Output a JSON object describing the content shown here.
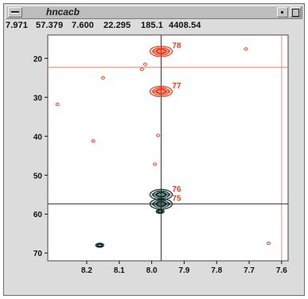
{
  "window": {
    "title": "hncacb",
    "menu_icon": "window-menu-icon",
    "minimize_icon": "minimize-icon",
    "maximize_icon": "maximize-icon"
  },
  "readout": {
    "values": [
      "7.971",
      "57.379",
      "7.600",
      "22.295",
      "185.1",
      "4408.54"
    ]
  },
  "colors": {
    "window_bg": "#dcdcdc",
    "plot_bg": "#ffffff",
    "contour_positive": "#e83b1c",
    "contour_negative": "#0c2e2a",
    "cursor_red": "#f08a7e",
    "cursor_black": "#333333"
  },
  "chart_data": {
    "type": "scatter",
    "title": "",
    "xlabel": "",
    "ylabel": "",
    "x_reversed": true,
    "y_reversed": true,
    "xlim": [
      8.32,
      7.58
    ],
    "ylim": [
      14,
      72
    ],
    "x_ticks": [
      "8.2",
      "8.1",
      "8.0",
      "7.9",
      "7.8",
      "7.7",
      "7.6"
    ],
    "y_ticks": [
      "20",
      "30",
      "40",
      "50",
      "60",
      "70"
    ],
    "peaks": [
      {
        "label": "78",
        "x": 7.971,
        "y": 18.2,
        "sign": "positive"
      },
      {
        "label": "77",
        "x": 7.971,
        "y": 28.5,
        "sign": "positive"
      },
      {
        "label": "76",
        "x": 7.971,
        "y": 55.0,
        "sign": "negative"
      },
      {
        "label": "75",
        "x": 7.971,
        "y": 57.4,
        "sign": "negative"
      },
      {
        "label": "",
        "x": 7.974,
        "y": 59.3,
        "sign": "negative"
      },
      {
        "label": "",
        "x": 8.16,
        "y": 68.0,
        "sign": "negative"
      }
    ],
    "noise_points": [
      {
        "x": 7.71,
        "y": 17.6
      },
      {
        "x": 8.15,
        "y": 25.0
      },
      {
        "x": 8.03,
        "y": 22.8
      },
      {
        "x": 8.02,
        "y": 21.5
      },
      {
        "x": 8.29,
        "y": 31.8
      },
      {
        "x": 8.18,
        "y": 41.2
      },
      {
        "x": 7.98,
        "y": 39.8
      },
      {
        "x": 7.99,
        "y": 47.2
      },
      {
        "x": 7.64,
        "y": 67.5
      }
    ],
    "crosshair": {
      "x": 7.971,
      "y": 57.379
    },
    "cursor_lines": {
      "x": 7.6,
      "y": 22.295
    }
  }
}
